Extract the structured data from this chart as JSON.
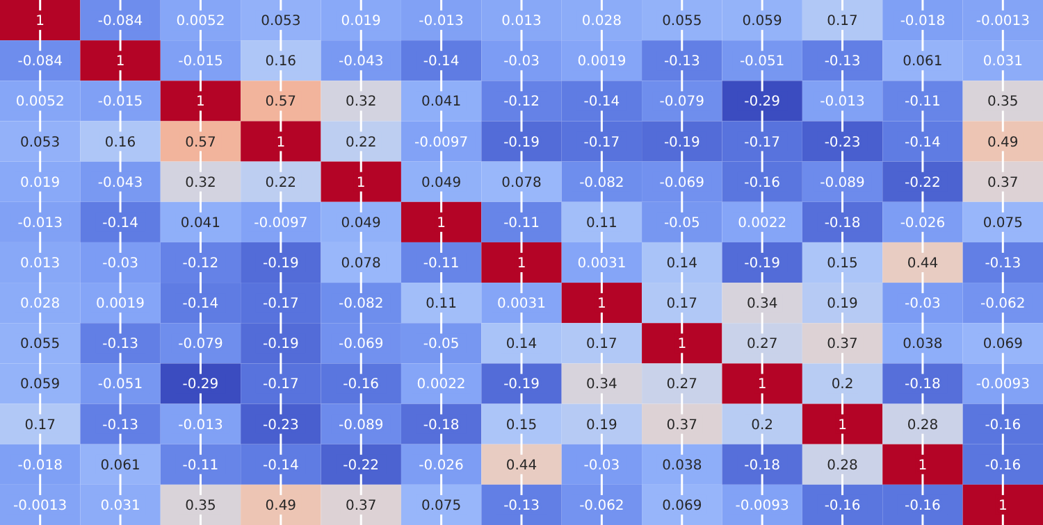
{
  "chart_data": {
    "type": "heatmap",
    "categories": [
      null,
      null,
      null,
      null,
      null,
      null,
      null,
      null,
      null,
      null,
      null,
      null,
      null
    ],
    "y_categories": [
      null,
      null,
      null,
      null,
      null,
      null,
      null,
      null,
      null,
      null,
      null,
      null,
      null
    ],
    "cells": [
      [
        1,
        -0.084,
        0.0052,
        0.053,
        0.019,
        -0.013,
        0.013,
        0.028,
        0.055,
        0.059,
        0.17,
        -0.018,
        -0.0013
      ],
      [
        -0.084,
        1,
        -0.015,
        0.16,
        -0.043,
        -0.14,
        -0.03,
        0.0019,
        -0.13,
        -0.051,
        -0.13,
        0.061,
        0.031
      ],
      [
        0.0052,
        -0.015,
        1,
        0.57,
        0.32,
        0.041,
        -0.12,
        -0.14,
        -0.079,
        -0.29,
        -0.013,
        -0.11,
        0.35
      ],
      [
        0.053,
        0.16,
        0.57,
        1,
        0.22,
        -0.0097,
        -0.19,
        -0.17,
        -0.19,
        -0.17,
        -0.23,
        -0.14,
        0.49
      ],
      [
        0.019,
        -0.043,
        0.32,
        0.22,
        1,
        0.049,
        0.078,
        -0.082,
        -0.069,
        -0.16,
        -0.089,
        -0.22,
        0.37
      ],
      [
        -0.013,
        -0.14,
        0.041,
        -0.0097,
        0.049,
        1,
        -0.11,
        0.11,
        -0.05,
        0.0022,
        -0.18,
        -0.026,
        0.075
      ],
      [
        0.013,
        -0.03,
        -0.12,
        -0.19,
        0.078,
        -0.11,
        1,
        0.0031,
        0.14,
        -0.19,
        0.15,
        0.44,
        -0.13
      ],
      [
        0.028,
        0.0019,
        -0.14,
        -0.17,
        -0.082,
        0.11,
        0.0031,
        1,
        0.17,
        0.34,
        0.19,
        -0.03,
        -0.062
      ],
      [
        0.055,
        -0.13,
        -0.079,
        -0.19,
        -0.069,
        -0.05,
        0.14,
        0.17,
        1,
        0.27,
        0.37,
        0.038,
        0.069
      ],
      [
        0.059,
        -0.051,
        -0.29,
        -0.17,
        -0.16,
        0.0022,
        -0.19,
        0.34,
        0.27,
        1,
        0.2,
        -0.18,
        -0.0093
      ],
      [
        0.17,
        -0.13,
        -0.013,
        -0.23,
        -0.089,
        -0.18,
        0.15,
        0.19,
        0.37,
        0.2,
        1,
        0.28,
        -0.16
      ],
      [
        -0.018,
        0.061,
        -0.11,
        -0.14,
        -0.22,
        -0.026,
        0.44,
        -0.03,
        0.038,
        -0.18,
        0.28,
        1,
        -0.16
      ],
      [
        -0.0013,
        0.031,
        0.35,
        0.49,
        0.37,
        0.075,
        -0.13,
        -0.062,
        0.069,
        -0.0093,
        -0.16,
        -0.16,
        1
      ]
    ],
    "data_labels": true,
    "grid": "x"
  }
}
